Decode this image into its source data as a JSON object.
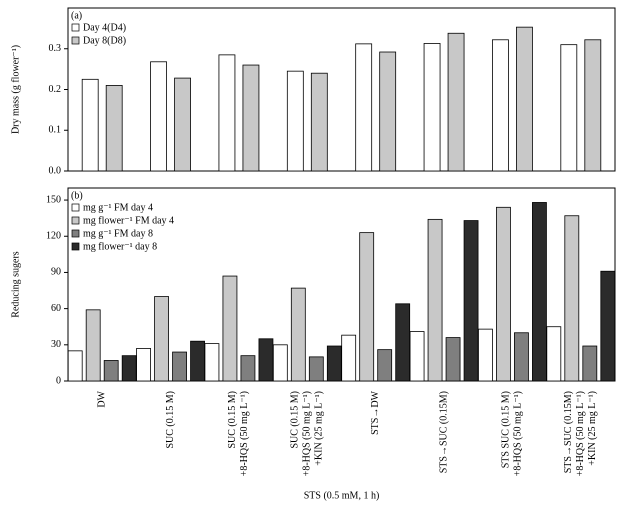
{
  "chart_data": [
    {
      "type": "bar",
      "panel_label": "(a)",
      "y_label": "Dry mass (g flower⁻¹)",
      "ylim": [
        0,
        0.4
      ],
      "yticks": [
        {
          "value": 0,
          "label": "0.0"
        },
        0.1,
        0.2,
        0.3
      ],
      "legend": "upper left",
      "series": [
        {
          "name": "Day 4(D4)",
          "color": "#ffffff",
          "values": [
            0.225,
            0.268,
            0.285,
            0.245,
            0.312,
            0.313,
            0.322,
            0.31
          ]
        },
        {
          "name": "Day 8(D8)",
          "color": "#c8c8c8",
          "values": [
            0.21,
            0.228,
            0.26,
            0.24,
            0.292,
            0.338,
            0.353,
            0.322
          ]
        }
      ]
    },
    {
      "type": "bar",
      "panel_label": "(b)",
      "y_label": "Reducing sugers",
      "x_label": "STS (0.5 mM, 1 h)",
      "ylim": [
        0,
        160
      ],
      "yticks": [
        0,
        30,
        60,
        90,
        120,
        150
      ],
      "legend": "upper left",
      "categories": [
        [
          "DW"
        ],
        [
          "SUC (0.15 M)"
        ],
        [
          "SUC (0.15 M)",
          "+8-HQS (50 mg L⁻¹)"
        ],
        [
          "SUC (0.15 M)",
          "+8-HQS (50 mg L⁻¹)",
          "+KIN (25 mg L⁻¹)"
        ],
        [
          "STS→DW"
        ],
        [
          "STS→SUC (0.15M)"
        ],
        [
          "STS    SUC (0.15 M)",
          "+8-HQS (50 mg L⁻¹)"
        ],
        [
          "STS→SUC (0.15M)",
          "+8-HQS (50 mg L⁻¹)",
          "+KIN (25 mg L⁻¹)"
        ]
      ],
      "series": [
        {
          "name": "mg g⁻¹ FM day 4",
          "color": "#ffffff",
          "values": [
            25,
            27,
            31,
            30,
            38,
            41,
            43,
            45
          ]
        },
        {
          "name": "mg flower⁻¹ FM day 4",
          "color": "#c8c8c8",
          "values": [
            59,
            70,
            87,
            77,
            123,
            134,
            144,
            137
          ]
        },
        {
          "name": "mg g⁻¹ FM day 8",
          "color": "#7f7f7f",
          "values": [
            17,
            24,
            21,
            20,
            26,
            36,
            40,
            29
          ]
        },
        {
          "name": "mg flower⁻¹ day 8",
          "color": "#2b2b2b",
          "values": [
            21,
            33,
            35,
            29,
            64,
            133,
            148,
            91
          ]
        }
      ]
    }
  ]
}
